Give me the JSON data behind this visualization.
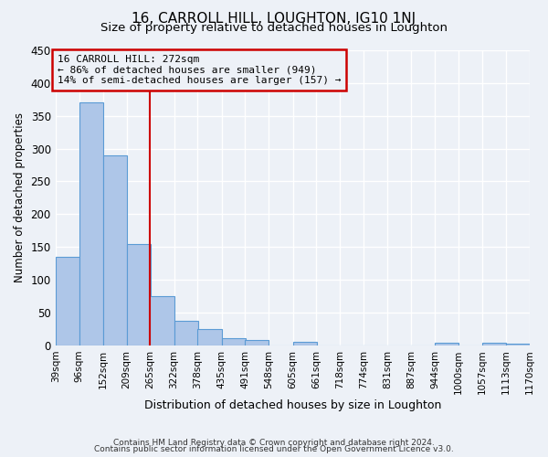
{
  "title": "16, CARROLL HILL, LOUGHTON, IG10 1NJ",
  "subtitle": "Size of property relative to detached houses in Loughton",
  "xlabel": "Distribution of detached houses by size in Loughton",
  "ylabel": "Number of detached properties",
  "footer_line1": "Contains HM Land Registry data © Crown copyright and database right 2024.",
  "footer_line2": "Contains public sector information licensed under the Open Government Licence v3.0.",
  "bar_left_edges": [
    39,
    96,
    152,
    209,
    265,
    322,
    378,
    435,
    491,
    548,
    605,
    661,
    718,
    774,
    831,
    887,
    944,
    1000,
    1057,
    1113
  ],
  "bar_heights": [
    135,
    370,
    290,
    155,
    75,
    38,
    25,
    11,
    8,
    0,
    5,
    0,
    0,
    0,
    0,
    0,
    4,
    0,
    4,
    3
  ],
  "bin_width": 57,
  "bar_color": "#aec6e8",
  "bar_edge_color": "#5b9bd5",
  "tick_labels": [
    "39sqm",
    "96sqm",
    "152sqm",
    "209sqm",
    "265sqm",
    "322sqm",
    "378sqm",
    "435sqm",
    "491sqm",
    "548sqm",
    "605sqm",
    "661sqm",
    "718sqm",
    "774sqm",
    "831sqm",
    "887sqm",
    "944sqm",
    "1000sqm",
    "1057sqm",
    "1113sqm",
    "1170sqm"
  ],
  "vline_x": 265,
  "vline_color": "#cc0000",
  "annotation_title": "16 CARROLL HILL: 272sqm",
  "annotation_line2": "← 86% of detached houses are smaller (949)",
  "annotation_line3": "14% of semi-detached houses are larger (157) →",
  "annotation_box_color": "#cc0000",
  "ylim": [
    0,
    450
  ],
  "yticks": [
    0,
    50,
    100,
    150,
    200,
    250,
    300,
    350,
    400,
    450
  ],
  "background_color": "#edf1f7",
  "grid_color": "#ffffff",
  "title_fontsize": 11,
  "subtitle_fontsize": 9.5,
  "ylabel_fontsize": 8.5,
  "xlabel_fontsize": 9,
  "tick_fontsize": 7.5,
  "footer_fontsize": 6.5
}
